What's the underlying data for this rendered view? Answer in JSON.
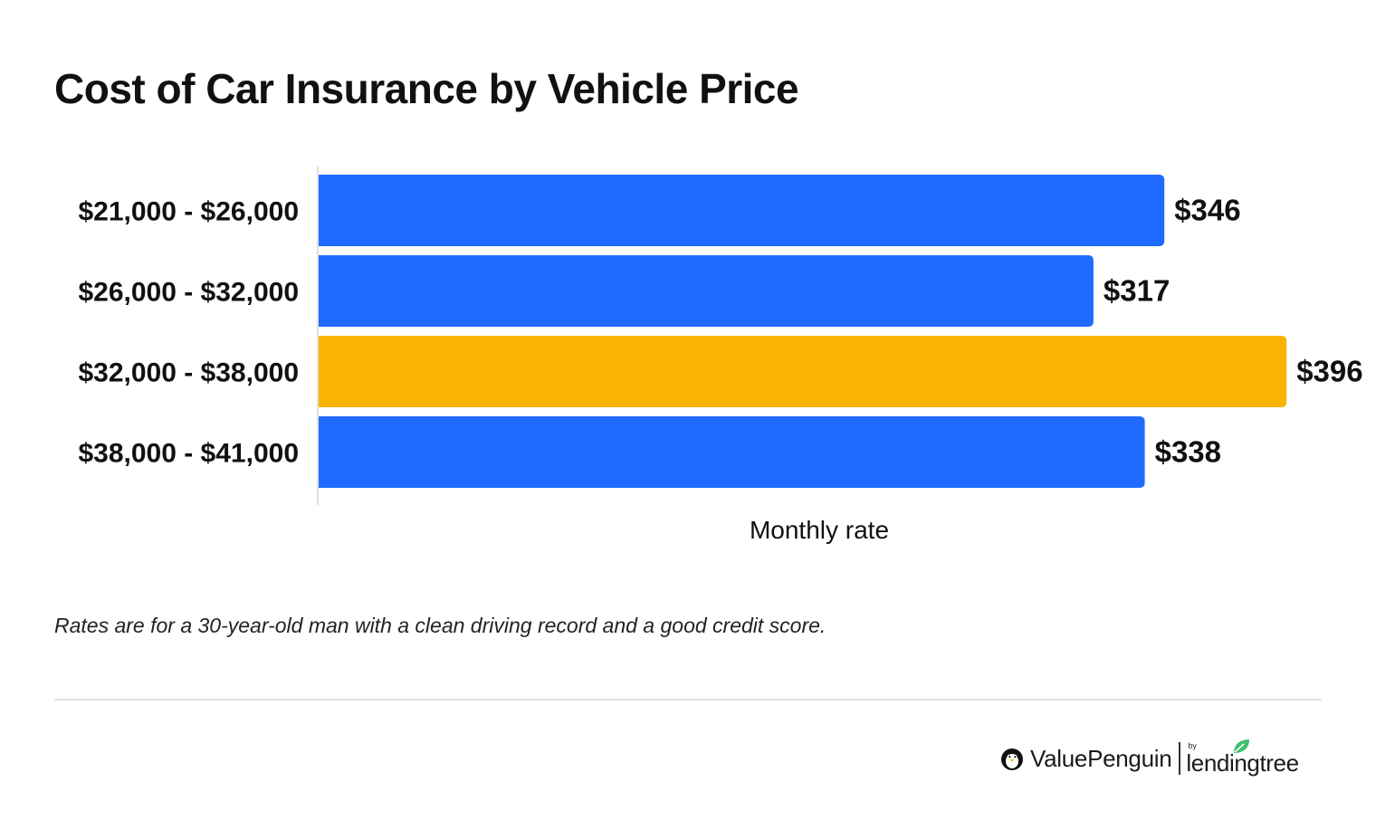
{
  "chart_data": {
    "type": "bar",
    "orientation": "horizontal",
    "title": "Cost of Car Insurance by Vehicle Price",
    "xlabel": "Monthly rate",
    "ylabel": "",
    "categories": [
      "$21,000 - $26,000",
      "$26,000 - $32,000",
      "$32,000 - $38,000",
      "$38,000 - $41,000"
    ],
    "values": [
      346,
      317,
      396,
      338
    ],
    "value_labels": [
      "$346",
      "$317",
      "$396",
      "$338"
    ],
    "bar_colors": [
      "#1f6bff",
      "#1f6bff",
      "#f9b300",
      "#1f6bff"
    ],
    "highlight_index": 2,
    "xlim": [
      0,
      400
    ],
    "grid": false,
    "legend": "none"
  },
  "footnote": "Rates are for a 30-year-old man with a clean driving record and a good credit score.",
  "branding": {
    "valuepenguin": "ValuePenguin",
    "by": "by",
    "lendingtree": "lendingtree",
    "penguin_icon": "penguin-icon",
    "leaf_icon": "leaf-icon",
    "leaf_color": "#3dbf6e"
  },
  "colors": {
    "bar_primary": "#1f6bff",
    "bar_highlight": "#f9b300",
    "text": "#111111",
    "divider": "#e2e2e2"
  }
}
